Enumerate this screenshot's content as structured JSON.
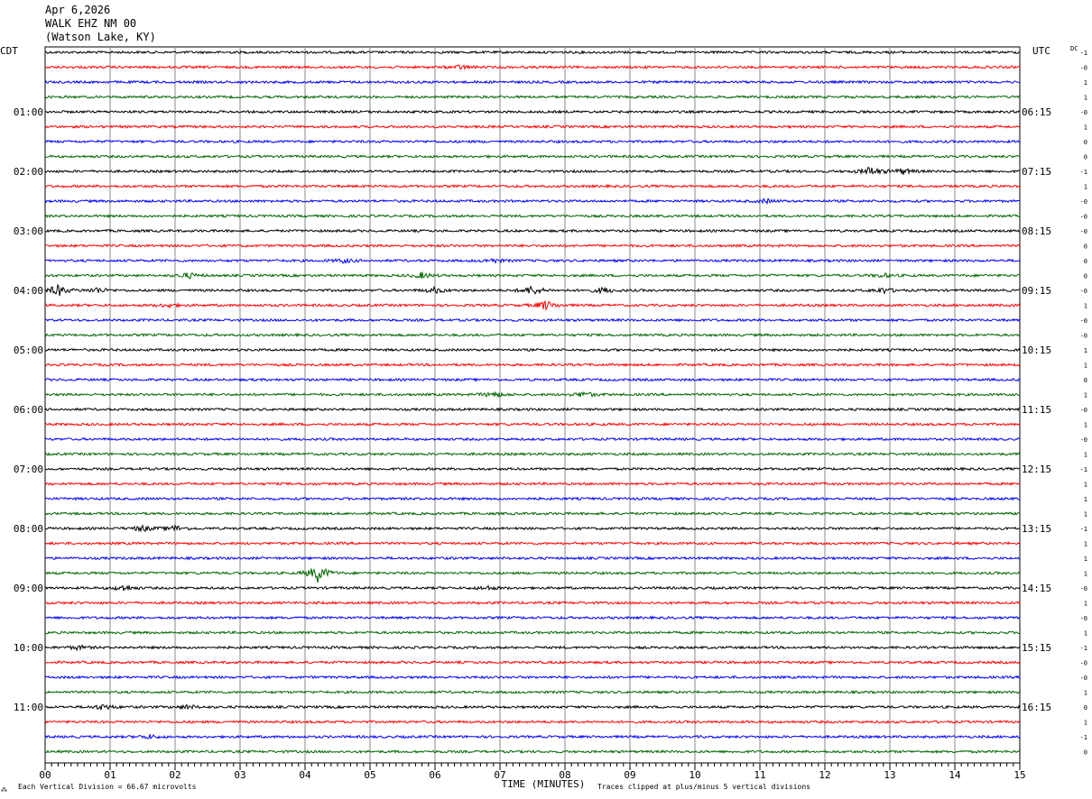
{
  "header": {
    "date": "Apr 6,2026",
    "station": "WALK EHZ NM 00",
    "location": "(Watson Lake, KY)"
  },
  "left_tz": "CDT",
  "right_tz": "UTC",
  "dc_label": "DC",
  "footer": {
    "left_icon": "⁂",
    "scale": "Each Vertical Division =   66.67 microvolts",
    "axis_title": "TIME (MINUTES)",
    "clip_note": "Traces clipped at plus/minus 5 vertical divisions"
  },
  "chart_data": {
    "type": "line",
    "title": "",
    "xlabel": "TIME (MINUTES)",
    "xlim": [
      0,
      15
    ],
    "x_ticks": [
      "00",
      "01",
      "02",
      "03",
      "04",
      "05",
      "06",
      "07",
      "08",
      "09",
      "10",
      "11",
      "12",
      "13",
      "14",
      "15"
    ],
    "traces_per_hour": 4,
    "trace_minutes": 15,
    "trace_colors": [
      "#000000",
      "#ff0000",
      "#0000ff",
      "#006600"
    ],
    "left_time_labels": [
      "",
      "01:00",
      "02:00",
      "03:00",
      "04:00",
      "05:00",
      "06:00",
      "07:00",
      "08:00",
      "09:00",
      "10:00",
      "11:00"
    ],
    "right_time_labels": [
      "",
      "06:15",
      "07:15",
      "08:15",
      "09:15",
      "10:15",
      "11:15",
      "12:15",
      "13:15",
      "14:15",
      "15:15",
      "16:15"
    ],
    "dc_offsets": [
      "-1",
      "-0",
      "1",
      "1",
      "-0",
      "1",
      "0",
      "0",
      "-1",
      "1",
      "-0",
      "-0",
      "-0",
      "0",
      "0",
      "0",
      "-0",
      "1",
      "-0",
      "-0",
      "1",
      "1",
      "0",
      "1",
      "-0",
      "1",
      "-0",
      "1",
      "-1",
      "1",
      "1",
      "1",
      "-1",
      "1",
      "1",
      "1",
      "-0",
      "1",
      "-0",
      "1",
      "-1",
      "-0",
      "-0",
      "1",
      "0",
      "1",
      "-1",
      "0"
    ],
    "events": [
      {
        "trace": 1,
        "minute": 6.4,
        "amp": 2
      },
      {
        "trace": 8,
        "minute": 12.7,
        "amp": 5
      },
      {
        "trace": 8,
        "minute": 13.2,
        "amp": 3
      },
      {
        "trace": 10,
        "minute": 11.1,
        "amp": 2
      },
      {
        "trace": 14,
        "minute": 4.6,
        "amp": 2
      },
      {
        "trace": 14,
        "minute": 6.9,
        "amp": 2
      },
      {
        "trace": 15,
        "minute": 2.2,
        "amp": 3
      },
      {
        "trace": 15,
        "minute": 5.8,
        "amp": 3
      },
      {
        "trace": 15,
        "minute": 12.9,
        "amp": 2
      },
      {
        "trace": 16,
        "minute": 0.2,
        "amp": 6
      },
      {
        "trace": 16,
        "minute": 0.8,
        "amp": 3
      },
      {
        "trace": 16,
        "minute": 6.0,
        "amp": 3
      },
      {
        "trace": 16,
        "minute": 7.5,
        "amp": 5
      },
      {
        "trace": 16,
        "minute": 8.6,
        "amp": 3
      },
      {
        "trace": 16,
        "minute": 12.9,
        "amp": 3
      },
      {
        "trace": 17,
        "minute": 1.9,
        "amp": 2
      },
      {
        "trace": 17,
        "minute": 7.7,
        "amp": 5
      },
      {
        "trace": 23,
        "minute": 6.9,
        "amp": 3
      },
      {
        "trace": 23,
        "minute": 8.3,
        "amp": 3
      },
      {
        "trace": 32,
        "minute": 1.5,
        "amp": 3
      },
      {
        "trace": 32,
        "minute": 2.0,
        "amp": 3
      },
      {
        "trace": 35,
        "minute": 4.2,
        "amp": 10
      },
      {
        "trace": 36,
        "minute": 1.2,
        "amp": 3
      },
      {
        "trace": 36,
        "minute": 6.8,
        "amp": 2
      },
      {
        "trace": 40,
        "minute": 0.5,
        "amp": 2
      },
      {
        "trace": 44,
        "minute": 0.9,
        "amp": 3
      },
      {
        "trace": 44,
        "minute": 2.2,
        "amp": 2
      },
      {
        "trace": 46,
        "minute": 1.6,
        "amp": 2
      }
    ]
  }
}
